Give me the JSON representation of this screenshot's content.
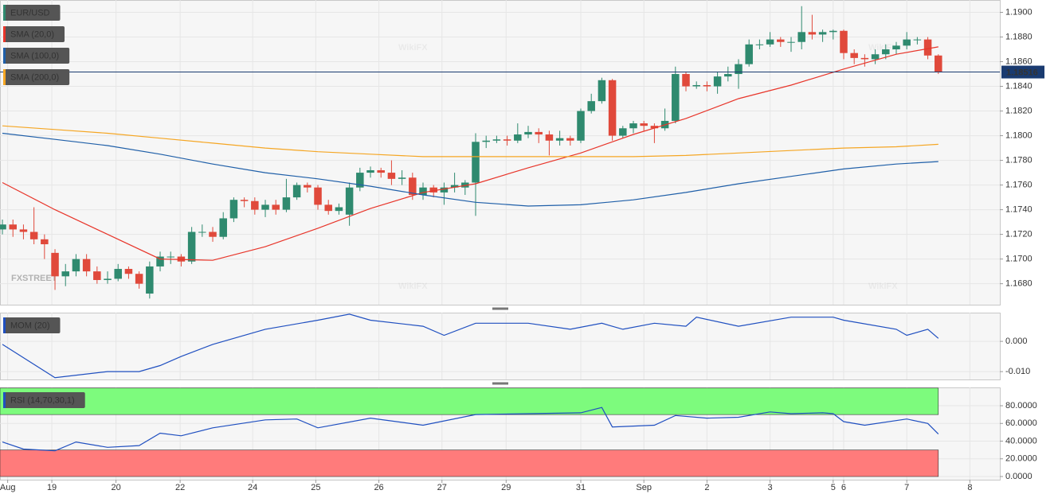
{
  "chart_data": [
    {
      "type": "candlestick",
      "symbol": "EUR/USD",
      "watermark": "WikiFX",
      "brand": "FXSTREET",
      "up_color": "#2f8a6f",
      "down_color": "#e0493b",
      "xlim": [
        -0.23,
        94.85
      ],
      "ylim": [
        1.1663,
        1.191
      ],
      "yticks": [
        {
          "value": 1.168,
          "label": "1.1680"
        },
        {
          "value": 1.17,
          "label": "1.1700"
        },
        {
          "value": 1.172,
          "label": "1.1720"
        },
        {
          "value": 1.174,
          "label": "1.1740"
        },
        {
          "value": 1.176,
          "label": "1.1760"
        },
        {
          "value": 1.178,
          "label": "1.1780"
        },
        {
          "value": 1.18,
          "label": "1.1800"
        },
        {
          "value": 1.182,
          "label": "1.1820"
        },
        {
          "value": 1.184,
          "label": "1.1840"
        },
        {
          "value": 1.186,
          "label": "1.1860"
        },
        {
          "value": 1.188,
          "label": "1.1880"
        },
        {
          "value": 1.19,
          "label": "1.1900"
        }
      ],
      "grid": true,
      "last_price": 1.18516,
      "last_price_color": "#1a3b70",
      "candles": [
        [
          1.1724,
          1.1732,
          1.172,
          1.1728
        ],
        [
          1.1728,
          1.1732,
          1.1718,
          1.1724
        ],
        [
          1.1724,
          1.1728,
          1.1716,
          1.1722
        ],
        [
          1.1722,
          1.1742,
          1.1712,
          1.1716
        ],
        [
          1.1716,
          1.172,
          1.17,
          1.1712
        ],
        [
          1.1705,
          1.1708,
          1.1675,
          1.1686
        ],
        [
          1.1686,
          1.1696,
          1.1678,
          1.169
        ],
        [
          1.169,
          1.1704,
          1.1686,
          1.17
        ],
        [
          1.17,
          1.1704,
          1.1686,
          1.169
        ],
        [
          1.169,
          1.1694,
          1.168,
          1.1683
        ],
        [
          1.1683,
          1.169,
          1.168,
          1.1684
        ],
        [
          1.1684,
          1.1696,
          1.1682,
          1.1692
        ],
        [
          1.1692,
          1.1694,
          1.1684,
          1.1688
        ],
        [
          1.1688,
          1.169,
          1.1676,
          1.168
        ],
        [
          1.1672,
          1.1698,
          1.1668,
          1.1694
        ],
        [
          1.1694,
          1.1706,
          1.169,
          1.1702
        ],
        [
          1.1702,
          1.1706,
          1.1696,
          1.1702
        ],
        [
          1.1702,
          1.1704,
          1.1694,
          1.1698
        ],
        [
          1.1698,
          1.1726,
          1.1696,
          1.1722
        ],
        [
          1.1722,
          1.1728,
          1.1718,
          1.1722
        ],
        [
          1.1722,
          1.1726,
          1.1714,
          1.1718
        ],
        [
          1.1718,
          1.1738,
          1.1716,
          1.1733
        ],
        [
          1.1733,
          1.175,
          1.173,
          1.1748
        ],
        [
          1.1748,
          1.175,
          1.1742,
          1.1747
        ],
        [
          1.1747,
          1.175,
          1.1736,
          1.174
        ],
        [
          1.174,
          1.1748,
          1.1734,
          1.1744
        ],
        [
          1.1744,
          1.1748,
          1.1736,
          1.174
        ],
        [
          1.174,
          1.1765,
          1.1738,
          1.175
        ],
        [
          1.175,
          1.1762,
          1.1748,
          1.176
        ],
        [
          1.176,
          1.1762,
          1.1754,
          1.1758
        ],
        [
          1.1758,
          1.176,
          1.174,
          1.1744
        ],
        [
          1.1744,
          1.1748,
          1.1736,
          1.1739
        ],
        [
          1.1739,
          1.1745,
          1.1736,
          1.1742
        ],
        [
          1.1736,
          1.1762,
          1.1727,
          1.1758
        ],
        [
          1.1758,
          1.1774,
          1.1755,
          1.177
        ],
        [
          1.177,
          1.1775,
          1.1766,
          1.1772
        ],
        [
          1.1772,
          1.1774,
          1.1766,
          1.177
        ],
        [
          1.177,
          1.178,
          1.176,
          1.1765
        ],
        [
          1.1765,
          1.1772,
          1.176,
          1.1766
        ],
        [
          1.1766,
          1.177,
          1.1748,
          1.1752
        ],
        [
          1.1752,
          1.1762,
          1.1748,
          1.1758
        ],
        [
          1.1758,
          1.176,
          1.175,
          1.1754
        ],
        [
          1.1754,
          1.1762,
          1.1744,
          1.1758
        ],
        [
          1.1758,
          1.177,
          1.1754,
          1.176
        ],
        [
          1.1758,
          1.1764,
          1.1752,
          1.1762
        ],
        [
          1.1762,
          1.1802,
          1.1735,
          1.1795
        ],
        [
          1.1795,
          1.18,
          1.179,
          1.1796
        ],
        [
          1.1796,
          1.18,
          1.1794,
          1.1797
        ],
        [
          1.1797,
          1.18,
          1.1792,
          1.1796
        ],
        [
          1.1796,
          1.181,
          1.1794,
          1.1801
        ],
        [
          1.1801,
          1.1808,
          1.1798,
          1.1803
        ],
        [
          1.1803,
          1.1806,
          1.1794,
          1.1801
        ],
        [
          1.1801,
          1.1804,
          1.1784,
          1.1796
        ],
        [
          1.1796,
          1.1804,
          1.1792,
          1.1798
        ],
        [
          1.1798,
          1.18,
          1.1792,
          1.1796
        ],
        [
          1.1796,
          1.1822,
          1.1794,
          1.182
        ],
        [
          1.182,
          1.1834,
          1.1818,
          1.1828
        ],
        [
          1.1828,
          1.1847,
          1.1826,
          1.1845
        ],
        [
          1.1845,
          1.1846,
          1.1796,
          1.18
        ],
        [
          1.18,
          1.1808,
          1.1798,
          1.1806
        ],
        [
          1.1806,
          1.1812,
          1.1802,
          1.181
        ],
        [
          1.181,
          1.1812,
          1.1804,
          1.1808
        ],
        [
          1.1808,
          1.181,
          1.1794,
          1.1806
        ],
        [
          1.1806,
          1.1822,
          1.1804,
          1.1812
        ],
        [
          1.1812,
          1.1856,
          1.181,
          1.185
        ],
        [
          1.185,
          1.1852,
          1.1836,
          1.184
        ],
        [
          1.184,
          1.1844,
          1.1838,
          1.1841
        ],
        [
          1.1841,
          1.1844,
          1.1836,
          1.184
        ],
        [
          1.184,
          1.1852,
          1.1834,
          1.1848
        ],
        [
          1.1848,
          1.1856,
          1.1844,
          1.185
        ],
        [
          1.185,
          1.1862,
          1.1838,
          1.1858
        ],
        [
          1.1858,
          1.1878,
          1.1856,
          1.1874
        ],
        [
          1.1874,
          1.1878,
          1.187,
          1.1874
        ],
        [
          1.1874,
          1.1884,
          1.1872,
          1.1878
        ],
        [
          1.1878,
          1.188,
          1.1872,
          1.1876
        ],
        [
          1.1876,
          1.188,
          1.1868,
          1.1876
        ],
        [
          1.1876,
          1.1905,
          1.187,
          1.1884
        ],
        [
          1.1884,
          1.1898,
          1.1878,
          1.1882
        ],
        [
          1.1882,
          1.1886,
          1.1876,
          1.1884
        ],
        [
          1.1884,
          1.1886,
          1.1878,
          1.1885
        ],
        [
          1.1885,
          1.1886,
          1.1862,
          1.1867
        ],
        [
          1.1867,
          1.187,
          1.1858,
          1.1863
        ],
        [
          1.1863,
          1.1866,
          1.1856,
          1.1862
        ],
        [
          1.1862,
          1.187,
          1.1858,
          1.1866
        ],
        [
          1.1866,
          1.1874,
          1.1862,
          1.187
        ],
        [
          1.187,
          1.1876,
          1.1866,
          1.1873
        ],
        [
          1.1873,
          1.1884,
          1.187,
          1.1878
        ],
        [
          1.1878,
          1.188,
          1.1874,
          1.1878
        ],
        [
          1.1878,
          1.188,
          1.1862,
          1.1865
        ],
        [
          1.1865,
          1.1866,
          1.185,
          1.18516
        ]
      ],
      "series": [
        {
          "name": "SMA (20,0)",
          "color": "#e8352a",
          "x": [
            0,
            5,
            10,
            15,
            20,
            25,
            30,
            35,
            40,
            45,
            50,
            55,
            60,
            65,
            70,
            75,
            80,
            85,
            89
          ],
          "values": [
            1.1762,
            1.174,
            1.172,
            1.17,
            1.1699,
            1.171,
            1.1725,
            1.1741,
            1.1754,
            1.1761,
            1.1774,
            1.1786,
            1.1801,
            1.1814,
            1.183,
            1.1841,
            1.1854,
            1.1866,
            1.1872
          ]
        },
        {
          "name": "SMA (100,0)",
          "color": "#1f5fa8",
          "x": [
            0,
            5,
            10,
            15,
            20,
            25,
            30,
            35,
            40,
            45,
            50,
            55,
            60,
            65,
            70,
            75,
            80,
            85,
            89
          ],
          "values": [
            1.1802,
            1.1797,
            1.1792,
            1.1785,
            1.1777,
            1.177,
            1.1765,
            1.1759,
            1.1752,
            1.1746,
            1.1743,
            1.1744,
            1.1748,
            1.1754,
            1.1761,
            1.1767,
            1.1773,
            1.1777,
            1.1779
          ]
        },
        {
          "name": "SMA (200,0)",
          "color": "#f5a623",
          "x": [
            0,
            5,
            10,
            15,
            20,
            25,
            30,
            35,
            40,
            45,
            50,
            55,
            60,
            65,
            70,
            75,
            80,
            85,
            89
          ],
          "values": [
            1.1808,
            1.1805,
            1.1802,
            1.1798,
            1.1794,
            1.179,
            1.1787,
            1.1785,
            1.1783,
            1.1783,
            1.1783,
            1.1783,
            1.1783,
            1.1784,
            1.1786,
            1.1788,
            1.179,
            1.1791,
            1.1793
          ]
        }
      ]
    },
    {
      "type": "line",
      "xlim": [
        -0.23,
        94.85
      ],
      "ylim": [
        -0.0126,
        0.0095
      ],
      "yticks": [
        {
          "value": -0.01,
          "label": "-0.010"
        },
        {
          "value": 0,
          "label": "0.000"
        }
      ],
      "grid": true,
      "series": [
        {
          "name": "MOM (20)",
          "color": "#1f4fc0",
          "x": [
            0,
            5,
            10,
            13,
            15,
            17,
            20,
            25,
            30,
            33,
            35,
            40,
            42,
            45,
            50,
            54,
            57,
            59,
            62,
            65,
            66,
            70,
            75,
            79,
            80,
            85,
            86,
            88,
            89
          ],
          "values": [
            -0.001,
            -0.012,
            -0.01,
            -0.01,
            -0.008,
            -0.005,
            -0.001,
            0.004,
            0.007,
            0.009,
            0.007,
            0.005,
            0.002,
            0.006,
            0.006,
            0.004,
            0.006,
            0.004,
            0.006,
            0.005,
            0.008,
            0.005,
            0.008,
            0.008,
            0.007,
            0.004,
            0.002,
            0.004,
            0.001
          ]
        }
      ]
    },
    {
      "type": "line",
      "xlim": [
        -0.23,
        94.85
      ],
      "ylim": [
        -3.6,
        100.7
      ],
      "yticks": [
        {
          "value": 0,
          "label": "0.0000"
        },
        {
          "value": 20,
          "label": "20.0000"
        },
        {
          "value": 40,
          "label": "40.0000"
        },
        {
          "value": 60,
          "label": "60.0000"
        },
        {
          "value": 80,
          "label": "80.0000"
        }
      ],
      "grid": true,
      "zones": [
        {
          "from": 70,
          "to": 100,
          "color": "#7dfb7d"
        },
        {
          "from": 0,
          "to": 30,
          "color": "#ff7b7b"
        }
      ],
      "xticks": [
        {
          "value": 0.5,
          "label": "Aug"
        },
        {
          "value": 4.7,
          "label": "19"
        },
        {
          "value": 10.8,
          "label": "20"
        },
        {
          "value": 16.9,
          "label": "22"
        },
        {
          "value": 23.8,
          "label": "24"
        },
        {
          "value": 29.8,
          "label": "25"
        },
        {
          "value": 35.8,
          "label": "26"
        },
        {
          "value": 41.8,
          "label": "27"
        },
        {
          "value": 47.9,
          "label": "29"
        },
        {
          "value": 55,
          "label": "31"
        },
        {
          "value": 61,
          "label": "Sep"
        },
        {
          "value": 67,
          "label": "2"
        },
        {
          "value": 73,
          "label": "3"
        },
        {
          "value": 79,
          "label": "5"
        },
        {
          "value": 80,
          "label": "6"
        },
        {
          "value": 86,
          "label": "7"
        },
        {
          "value": 92,
          "label": "8"
        }
      ],
      "series": [
        {
          "name": "RSI (14,70,30,1)",
          "color": "#1f4fc0",
          "x": [
            0,
            2,
            5,
            7,
            10,
            13,
            15,
            17,
            20,
            25,
            28,
            30,
            35,
            40,
            45,
            50,
            55,
            57,
            58,
            62,
            64,
            67,
            70,
            73,
            75,
            78,
            79,
            80,
            82,
            86,
            88,
            89
          ],
          "values": [
            39,
            31,
            29,
            39,
            33,
            35,
            49,
            46,
            55,
            64,
            65,
            55,
            66,
            58,
            70,
            71,
            72,
            78,
            56,
            58,
            69,
            66,
            67,
            73,
            71,
            72,
            71,
            62,
            58,
            65,
            60,
            48
          ]
        }
      ]
    }
  ]
}
